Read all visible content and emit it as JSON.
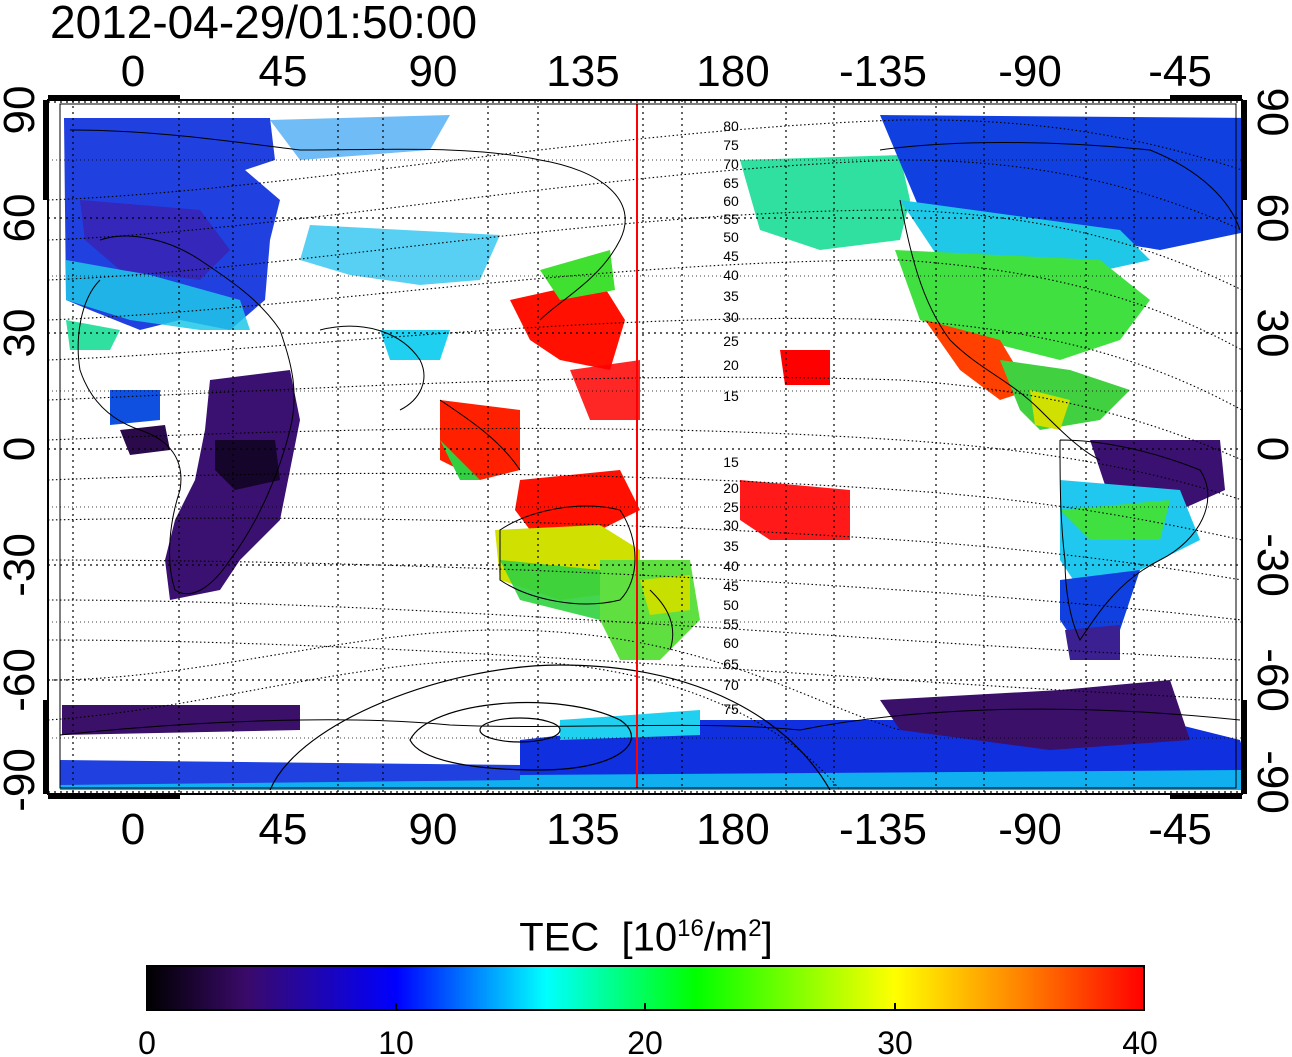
{
  "timestamp": "2012-04-29/01:50:00",
  "x_ticks": [
    "0",
    "45",
    "90",
    "135",
    "180",
    "-135",
    "-90",
    "-45"
  ],
  "y_ticks_left": [
    "90",
    "60",
    "30",
    "0",
    "-30",
    "-60",
    "-90"
  ],
  "y_ticks_right": [
    "90",
    "60",
    "30",
    "0",
    "-30",
    "-60",
    "-90"
  ],
  "contour_labels": [
    "80",
    "75",
    "70",
    "65",
    "60",
    "55",
    "50",
    "45",
    "40",
    "35",
    "30",
    "25",
    "20",
    "15",
    "15",
    "20",
    "25",
    "30",
    "35",
    "40",
    "45",
    "50",
    "55",
    "60",
    "65",
    "70",
    "75"
  ],
  "colorbar": {
    "title_main": "TEC",
    "title_bracket_open": "[10",
    "title_exp1": "16",
    "title_mid": "/m",
    "title_exp2": "2",
    "title_bracket_close": "]",
    "ticks": [
      "0",
      "10",
      "20",
      "30",
      "40"
    ],
    "min": 0,
    "max": 40,
    "stops": [
      "#000000",
      "#3a0a6a",
      "#0000ff",
      "#00ffff",
      "#00ff00",
      "#ffff00",
      "#ff7f00",
      "#ff0000"
    ]
  },
  "colors": {
    "terminator": "#ff0000",
    "high": "#ff0000",
    "yellow": "#e8e000",
    "green": "#30e030",
    "cyan": "#20d0f0",
    "blue": "#1030e0",
    "purple": "#3a1068",
    "dark": "#15052a"
  }
}
